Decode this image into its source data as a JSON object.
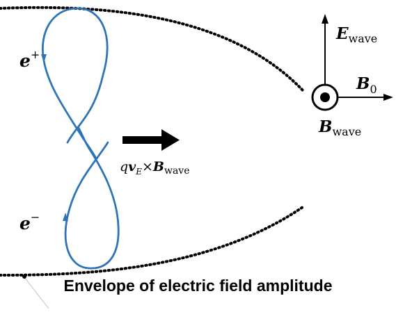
{
  "labels": {
    "positron_base": "e",
    "positron_sup": "+",
    "electron_base": "e",
    "electron_sup": "−",
    "force_q": "q",
    "force_v": "v",
    "force_v_sub": "E",
    "force_cross": "×",
    "force_B": "B",
    "force_B_sub": "wave",
    "e_wave_base": "E",
    "e_wave_sub": "wave",
    "b0_base": "B",
    "b0_sub": "0",
    "b_wave_base": "B",
    "b_wave_sub": "wave"
  },
  "caption": "Envelope of electric field amplitude",
  "colors": {
    "trajectory": "#2f74b5",
    "ink": "#000000",
    "leader_line": "#bfbfbf"
  }
}
